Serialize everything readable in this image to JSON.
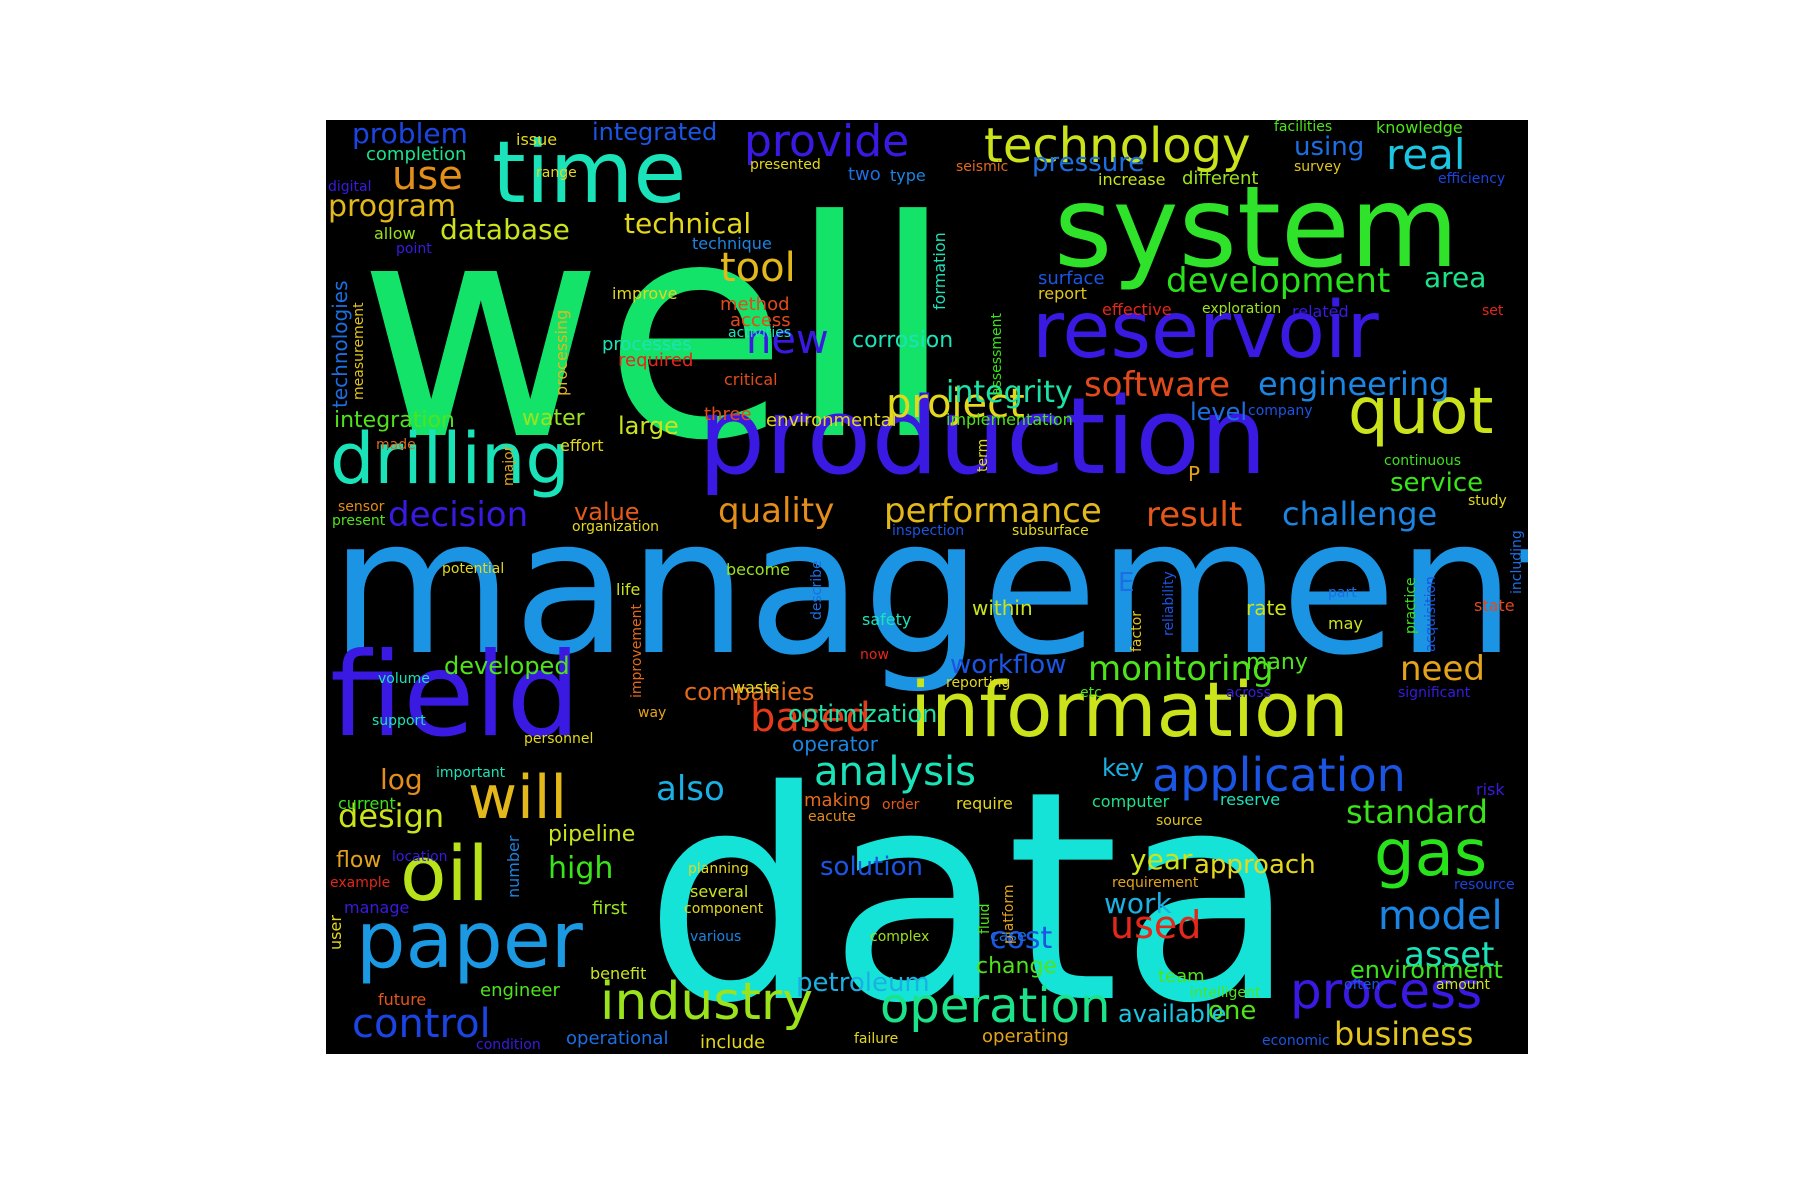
{
  "word_cloud": {
    "background": "#000000",
    "words": [
      {
        "text": "well",
        "color": "#14e36a"
      },
      {
        "text": "data",
        "color": "#15e3d8"
      },
      {
        "text": "management",
        "color": "#1b94e3"
      },
      {
        "text": "system",
        "color": "#2fe32a"
      },
      {
        "text": "production",
        "color": "#3a1ae3"
      },
      {
        "text": "field",
        "color": "#3a1ae3"
      },
      {
        "text": "reservoir",
        "color": "#3a1ae3"
      },
      {
        "text": "information",
        "color": "#cbe31b"
      },
      {
        "text": "time",
        "color": "#1be3b9"
      },
      {
        "text": "drilling",
        "color": "#1be3b9"
      },
      {
        "text": "quot",
        "color": "#cbe31b"
      },
      {
        "text": "paper",
        "color": "#1b9ae3"
      },
      {
        "text": "oil",
        "color": "#b8e31b"
      },
      {
        "text": "will",
        "color": "#e3b81b"
      },
      {
        "text": "gas",
        "color": "#28e31b"
      },
      {
        "text": "technology",
        "color": "#cbe31b"
      },
      {
        "text": "process",
        "color": "#3a1ae3"
      },
      {
        "text": "industry",
        "color": "#9be31b"
      },
      {
        "text": "operation",
        "color": "#1be38a"
      },
      {
        "text": "application",
        "color": "#1b55e3"
      },
      {
        "text": "provide",
        "color": "#3a1ae3"
      },
      {
        "text": "development",
        "color": "#28e31b"
      },
      {
        "text": "real",
        "color": "#1bc6e3"
      },
      {
        "text": "use",
        "color": "#e38d1b"
      },
      {
        "text": "control",
        "color": "#1b45e3"
      },
      {
        "text": "analysis",
        "color": "#1be3b9"
      },
      {
        "text": "model",
        "color": "#1b85e3"
      },
      {
        "text": "project",
        "color": "#e3d81b"
      },
      {
        "text": "based",
        "color": "#e33b1b"
      },
      {
        "text": "monitoring",
        "color": "#4fe31b"
      },
      {
        "text": "performance",
        "color": "#e3b81b"
      },
      {
        "text": "quality",
        "color": "#e38d1b"
      },
      {
        "text": "software",
        "color": "#e34a1b"
      },
      {
        "text": "engineering",
        "color": "#1b85e3"
      },
      {
        "text": "new",
        "color": "#3a1ae3"
      },
      {
        "text": "tool",
        "color": "#e3b81b"
      },
      {
        "text": "program",
        "color": "#e3b81b"
      },
      {
        "text": "integrity",
        "color": "#1be3a8"
      },
      {
        "text": "decision",
        "color": "#3a1ae3"
      },
      {
        "text": "result",
        "color": "#e3571b"
      },
      {
        "text": "challenge",
        "color": "#1b85e3"
      },
      {
        "text": "asset",
        "color": "#1be3b9"
      },
      {
        "text": "used",
        "color": "#e3271b"
      },
      {
        "text": "cost",
        "color": "#1b55e3"
      },
      {
        "text": "standard",
        "color": "#3be31b"
      },
      {
        "text": "design",
        "color": "#cbe31b"
      },
      {
        "text": "also",
        "color": "#1bb0e3"
      },
      {
        "text": "problem",
        "color": "#1b45e3"
      },
      {
        "text": "workflow",
        "color": "#1b55e3"
      },
      {
        "text": "need",
        "color": "#e3a31b"
      },
      {
        "text": "business",
        "color": "#e3c51b"
      },
      {
        "text": "petroleum",
        "color": "#1bb0e3"
      },
      {
        "text": "area",
        "color": "#1be38a"
      },
      {
        "text": "environment",
        "color": "#3be31b"
      },
      {
        "text": "optimization",
        "color": "#1be3a8"
      },
      {
        "text": "pressure",
        "color": "#1b6fe3"
      },
      {
        "text": "integrated",
        "color": "#1b55e3"
      },
      {
        "text": "using",
        "color": "#1b6fe3"
      },
      {
        "text": "technical",
        "color": "#e3d81b"
      },
      {
        "text": "database",
        "color": "#cbe31b"
      },
      {
        "text": "solution",
        "color": "#1b55e3"
      },
      {
        "text": "high",
        "color": "#3be31b"
      },
      {
        "text": "year",
        "color": "#cbe31b"
      },
      {
        "text": "approach",
        "color": "#e3d81b"
      },
      {
        "text": "work",
        "color": "#1bb0e3"
      },
      {
        "text": "one",
        "color": "#4fe31b"
      },
      {
        "text": "service",
        "color": "#3be31b"
      },
      {
        "text": "companies",
        "color": "#e36a1b"
      },
      {
        "text": "log",
        "color": "#e38d1b"
      },
      {
        "text": "key",
        "color": "#1bb0e3"
      },
      {
        "text": "developed",
        "color": "#4fe31b"
      },
      {
        "text": "corrosion",
        "color": "#1be3b9"
      },
      {
        "text": "integration",
        "color": "#4fe31b"
      },
      {
        "text": "large",
        "color": "#cbe31b"
      },
      {
        "text": "water",
        "color": "#9be31b"
      },
      {
        "text": "level",
        "color": "#1b6fe3"
      },
      {
        "text": "many",
        "color": "#4fe31b"
      },
      {
        "text": "available",
        "color": "#1bc6e3"
      },
      {
        "text": "pipeline",
        "color": "#cbe31b"
      },
      {
        "text": "flow",
        "color": "#e3a31b"
      },
      {
        "text": "change",
        "color": "#4fe31b"
      },
      {
        "text": "value",
        "color": "#e35a1b"
      },
      {
        "text": "operator",
        "color": "#1b85e3"
      },
      {
        "text": "rate",
        "color": "#cbe31b"
      },
      {
        "text": "within",
        "color": "#cbe31b"
      },
      {
        "text": "method",
        "color": "#e34a1b"
      },
      {
        "text": "access",
        "color": "#e34a1b"
      },
      {
        "text": "technologies",
        "color": "#1b6fe3"
      },
      {
        "text": "three",
        "color": "#e34a1b"
      },
      {
        "text": "environmental",
        "color": "#e3d81b"
      },
      {
        "text": "implementation",
        "color": "#4fe31b"
      },
      {
        "text": "first",
        "color": "#9be31b"
      },
      {
        "text": "engineer",
        "color": "#4fe31b"
      },
      {
        "text": "team",
        "color": "#4fe31b"
      },
      {
        "text": "processes",
        "color": "#1be3b9"
      },
      {
        "text": "required",
        "color": "#e3271b"
      },
      {
        "text": "two",
        "color": "#1b6fe3"
      },
      {
        "text": "type",
        "color": "#1b85e3"
      },
      {
        "text": "processing",
        "color": "#e3b81b"
      },
      {
        "text": "completion",
        "color": "#1be38a"
      },
      {
        "text": "formation",
        "color": "#1be3b9"
      },
      {
        "text": "assessment",
        "color": "#3be31b"
      },
      {
        "text": "surface",
        "color": "#1b55e3"
      },
      {
        "text": "report",
        "color": "#e3c51b"
      },
      {
        "text": "effective",
        "color": "#e3271b"
      },
      {
        "text": "exploration",
        "color": "#9be31b"
      },
      {
        "text": "related",
        "color": "#3a1ae3"
      },
      {
        "text": "set",
        "color": "#e3271b"
      },
      {
        "text": "different",
        "color": "#9be31b"
      },
      {
        "text": "increase",
        "color": "#cbe31b"
      },
      {
        "text": "survey",
        "color": "#e3c51b"
      },
      {
        "text": "efficiency",
        "color": "#1b45e3"
      },
      {
        "text": "knowledge",
        "color": "#4fe31b"
      },
      {
        "text": "facilities",
        "color": "#4fe31b"
      },
      {
        "text": "seismic",
        "color": "#e36a1b"
      },
      {
        "text": "presented",
        "color": "#e3d81b"
      },
      {
        "text": "issue",
        "color": "#e3d81b"
      },
      {
        "text": "range",
        "color": "#e3d81b"
      },
      {
        "text": "digital",
        "color": "#3a1ae3"
      },
      {
        "text": "allow",
        "color": "#9be31b"
      },
      {
        "text": "point",
        "color": "#3a1ae3"
      },
      {
        "text": "technique",
        "color": "#1b85e3"
      },
      {
        "text": "improve",
        "color": "#e3d81b"
      },
      {
        "text": "activities",
        "color": "#1be3b9"
      },
      {
        "text": "critical",
        "color": "#e34a1b"
      },
      {
        "text": "measurement",
        "color": "#e3c51b"
      },
      {
        "text": "made",
        "color": "#e36a1b"
      },
      {
        "text": "effort",
        "color": "#e3d81b"
      },
      {
        "text": "major",
        "color": "#e3a31b"
      },
      {
        "text": "sensor",
        "color": "#e38d1b"
      },
      {
        "text": "present",
        "color": "#4fe31b"
      },
      {
        "text": "organization",
        "color": "#e3d81b"
      },
      {
        "text": "term",
        "color": "#e3d81b"
      },
      {
        "text": "company",
        "color": "#1b55e3"
      },
      {
        "text": "continuous",
        "color": "#3be31b"
      },
      {
        "text": "study",
        "color": "#e3d81b"
      },
      {
        "text": "including",
        "color": "#1b6fe3"
      },
      {
        "text": "inspection",
        "color": "#1b55e3"
      },
      {
        "text": "subsurface",
        "color": "#e3d81b"
      },
      {
        "text": "potential",
        "color": "#e3d81b"
      },
      {
        "text": "become",
        "color": "#9be31b"
      },
      {
        "text": "life",
        "color": "#cbe31b"
      },
      {
        "text": "describe",
        "color": "#1b6fe3"
      },
      {
        "text": "safety",
        "color": "#1be3b9"
      },
      {
        "text": "now",
        "color": "#e3271b"
      },
      {
        "text": "reliability",
        "color": "#1b55e3"
      },
      {
        "text": "factor",
        "color": "#e3c51b"
      },
      {
        "text": "practice",
        "color": "#3be31b"
      },
      {
        "text": "acquisition",
        "color": "#1b55e3"
      },
      {
        "text": "part",
        "color": "#1b6fe3"
      },
      {
        "text": "may",
        "color": "#cbe31b"
      },
      {
        "text": "state",
        "color": "#e34a1b"
      },
      {
        "text": "volume",
        "color": "#1be3b9"
      },
      {
        "text": "support",
        "color": "#1be3b9"
      },
      {
        "text": "improvement",
        "color": "#e36a1b"
      },
      {
        "text": "way",
        "color": "#e3a31b"
      },
      {
        "text": "waste",
        "color": "#e3d81b"
      },
      {
        "text": "reporting",
        "color": "#e3d81b"
      },
      {
        "text": "etc",
        "color": "#4fe31b"
      },
      {
        "text": "across",
        "color": "#3a1ae3"
      },
      {
        "text": "significant",
        "color": "#3a1ae3"
      },
      {
        "text": "personnel",
        "color": "#e3d81b"
      },
      {
        "text": "important",
        "color": "#1be3b9"
      },
      {
        "text": "current",
        "color": "#3be31b"
      },
      {
        "text": "making",
        "color": "#e36a1b"
      },
      {
        "text": "order",
        "color": "#e3571b"
      },
      {
        "text": "require",
        "color": "#e3d81b"
      },
      {
        "text": "eacute",
        "color": "#e38d1b"
      },
      {
        "text": "computer",
        "color": "#1be38a"
      },
      {
        "text": "reserve",
        "color": "#1be3b9"
      },
      {
        "text": "risk",
        "color": "#3a1ae3"
      },
      {
        "text": "source",
        "color": "#e3c51b"
      },
      {
        "text": "requirement",
        "color": "#e3a31b"
      },
      {
        "text": "location",
        "color": "#3a1ae3"
      },
      {
        "text": "example",
        "color": "#e3271b"
      },
      {
        "text": "manage",
        "color": "#3a1ae3"
      },
      {
        "text": "user",
        "color": "#e3d81b"
      },
      {
        "text": "number",
        "color": "#1b85e3"
      },
      {
        "text": "planning",
        "color": "#e3d81b"
      },
      {
        "text": "several",
        "color": "#cbe31b"
      },
      {
        "text": "component",
        "color": "#e3d81b"
      },
      {
        "text": "various",
        "color": "#1b85e3"
      },
      {
        "text": "complex",
        "color": "#9be31b"
      },
      {
        "text": "fluid",
        "color": "#4fe31b"
      },
      {
        "text": "platform",
        "color": "#e3a31b"
      },
      {
        "text": "case",
        "color": "#1b6fe3"
      },
      {
        "text": "benefit",
        "color": "#cbe31b"
      },
      {
        "text": "future",
        "color": "#e3571b"
      },
      {
        "text": "intelligent",
        "color": "#4fe31b"
      },
      {
        "text": "often",
        "color": "#1b55e3"
      },
      {
        "text": "amount",
        "color": "#cbe31b"
      },
      {
        "text": "resource",
        "color": "#1b45e3"
      },
      {
        "text": "condition",
        "color": "#3a1ae3"
      },
      {
        "text": "operational",
        "color": "#1b6fe3"
      },
      {
        "text": "include",
        "color": "#e3d81b"
      },
      {
        "text": "failure",
        "color": "#e3d81b"
      },
      {
        "text": "operating",
        "color": "#e3a31b"
      },
      {
        "text": "economic",
        "color": "#1b55e3"
      },
      {
        "text": "P",
        "color": "#e3a31b"
      },
      {
        "text": "E",
        "color": "#1b6fe3"
      }
    ]
  }
}
